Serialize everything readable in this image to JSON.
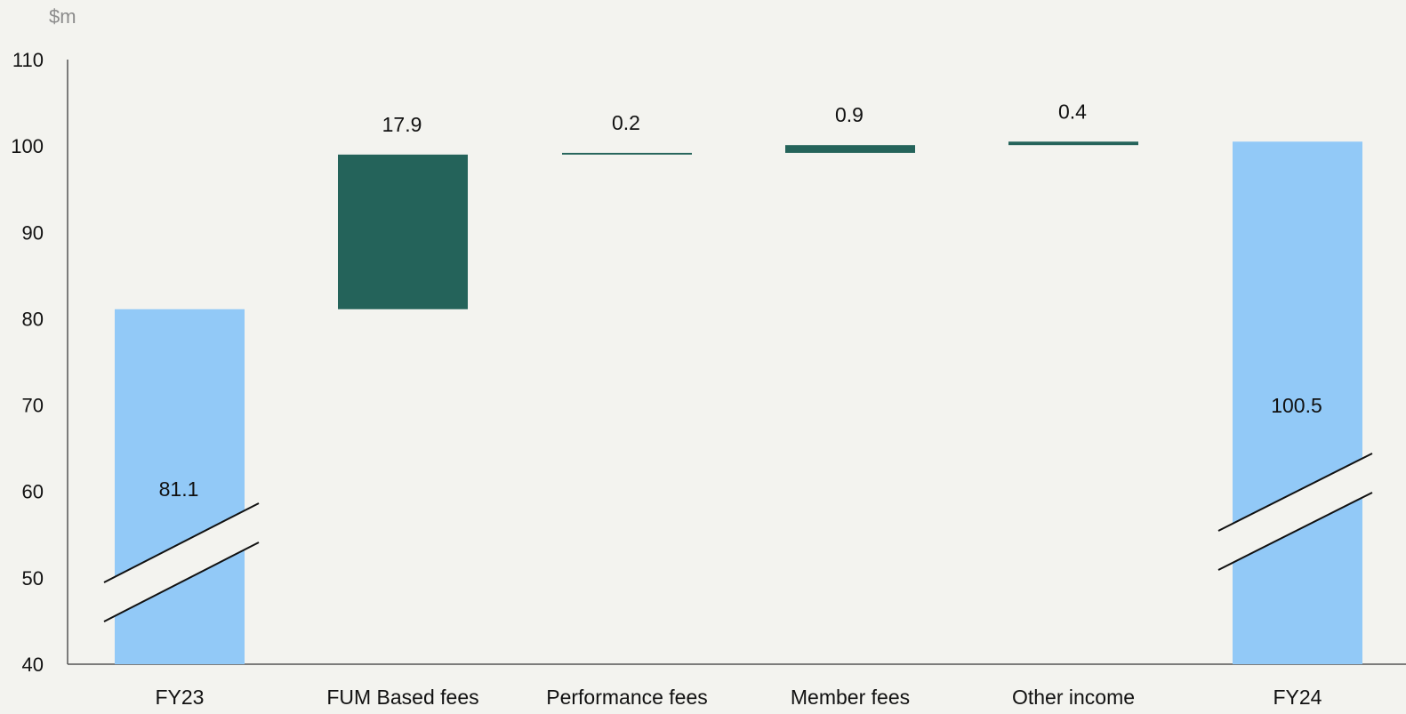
{
  "chart_data": {
    "type": "waterfall",
    "unit_label": "$m",
    "categories": [
      "FY23",
      "FUM Based fees",
      "Performance fees",
      "Member fees",
      "Other income",
      "FY24"
    ],
    "values": [
      81.1,
      17.9,
      0.2,
      0.9,
      0.4,
      100.5
    ],
    "data_labels": [
      "81.1",
      "17.9",
      "0.2",
      "0.9",
      "0.4",
      "100.5"
    ],
    "bar_kinds": [
      "total",
      "delta",
      "delta",
      "delta",
      "delta",
      "total"
    ],
    "yticks": [
      "110",
      "100",
      "90",
      "80",
      "70",
      "60",
      "50",
      "40"
    ],
    "ylim": [
      40,
      110
    ],
    "axis_break": true,
    "grid": false,
    "colors": {
      "total": "#92c9f7",
      "delta": "#24635a",
      "background": "#f3f3ef",
      "axis": "#555555"
    }
  }
}
